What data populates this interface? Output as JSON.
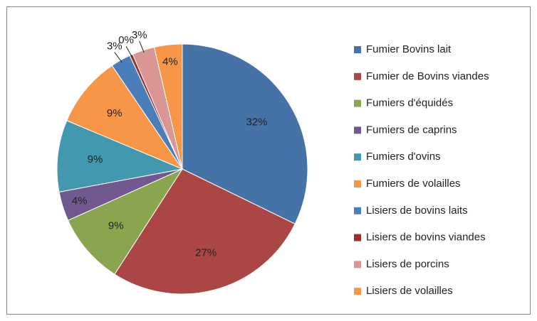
{
  "chart_data": {
    "type": "pie",
    "categories": [
      "Fumier Bovins lait",
      "Fumier de Bovins viandes",
      "Fumiers d'équidés",
      "Fumiers de caprins",
      "Fumiers d'ovins",
      "Fumiers de volailles",
      "Lisiers de bovins laits",
      "Lisiers de bovins viandes",
      "Lisiers de porcins",
      "Lisiers de volailles"
    ],
    "values": [
      32.3,
      26.9,
      9.2,
      3.8,
      9.3,
      9.2,
      2.6,
      0.4,
      2.9,
      3.6
    ],
    "value_labels": [
      "32%",
      "27%",
      "9%",
      "4%",
      "9%",
      "9%",
      "3%",
      "0%",
      "3%",
      "4%"
    ],
    "colors": [
      "#4572a7",
      "#aa4643",
      "#89a54e",
      "#71588f",
      "#4198af",
      "#f79646",
      "#4a7ebb",
      "#9c3030",
      "#d99694",
      "#f79646"
    ],
    "legend": "right"
  }
}
